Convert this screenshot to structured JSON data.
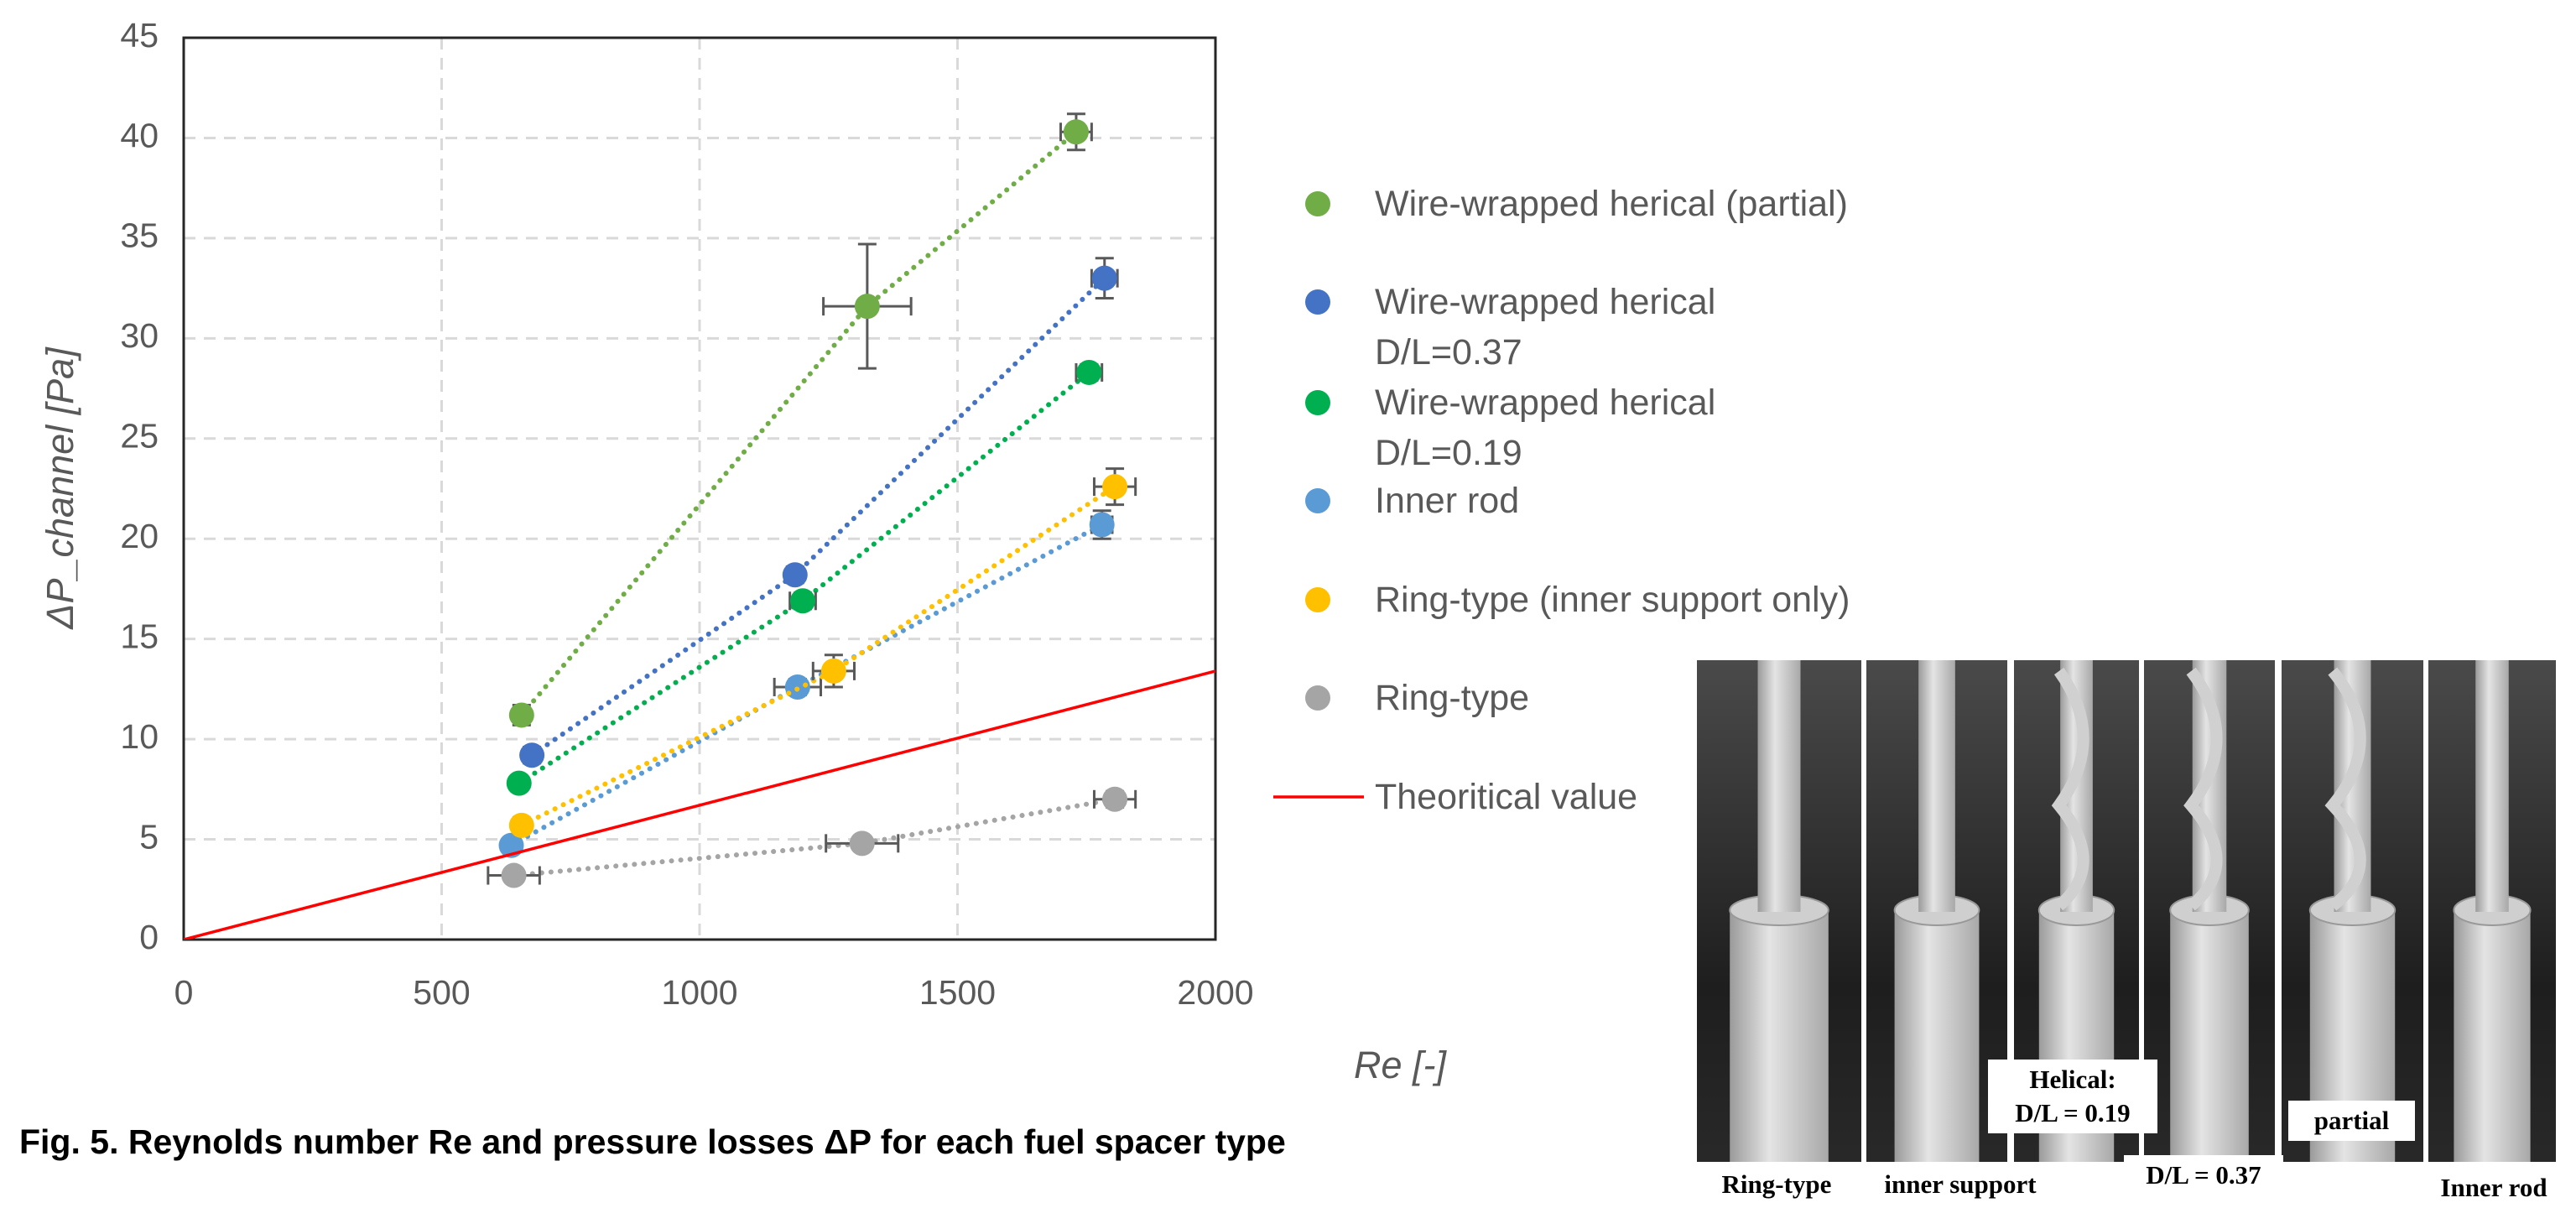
{
  "chart_data": {
    "type": "scatter",
    "caption": "Fig. 5. Reynolds number Re and pressure losses ΔP for each fuel spacer type",
    "xlabel": "Re [-]",
    "ylabel": "ΔP_channel [Pa]",
    "xlim": [
      0,
      2000
    ],
    "xticks": [
      0,
      500,
      1000,
      1500,
      2000
    ],
    "ylim": [
      0,
      45
    ],
    "yticks": [
      0,
      5,
      10,
      15,
      20,
      25,
      30,
      35,
      40,
      45
    ],
    "grid": true,
    "series": [
      {
        "name": "Wire-wrapped herical (partial)",
        "color": "#70ad47",
        "style": "marker",
        "x": [
          655,
          1325,
          1730
        ],
        "values": [
          11.2,
          31.6,
          40.3
        ],
        "xerr": [
          10,
          85,
          30
        ],
        "yerr": [
          0.5,
          3.1,
          0.9
        ]
      },
      {
        "name": "Wire-wrapped herical\nD/L=0.37",
        "color": "#4472c4",
        "style": "marker",
        "x": [
          675,
          1185,
          1785
        ],
        "values": [
          9.2,
          18.2,
          33.0
        ],
        "xerr": [
          15,
          15,
          25
        ],
        "yerr": [
          0.4,
          0.4,
          1.0
        ]
      },
      {
        "name": "Wire-wrapped herical\nD/L=0.19",
        "color": "#00b050",
        "style": "marker",
        "x": [
          650,
          1200,
          1755
        ],
        "values": [
          7.8,
          16.9,
          28.3
        ],
        "xerr": [
          10,
          25,
          25
        ],
        "yerr": [
          0.3,
          0.4,
          0.4
        ]
      },
      {
        "name": "Inner rod",
        "color": "#5b9bd5",
        "style": "marker",
        "x": [
          635,
          1190,
          1780
        ],
        "values": [
          4.7,
          12.6,
          20.7
        ],
        "xerr": [
          0,
          45,
          20
        ],
        "yerr": [
          0,
          0.4,
          0.7
        ]
      },
      {
        "name": "Ring-type (inner support only)",
        "color": "#ffc000",
        "style": "marker",
        "x": [
          655,
          1260,
          1805
        ],
        "values": [
          5.7,
          13.4,
          22.6
        ],
        "xerr": [
          15,
          40,
          40
        ],
        "yerr": [
          0.3,
          0.8,
          0.9
        ]
      },
      {
        "name": "Ring-type",
        "color": "#a5a5a5",
        "style": "marker",
        "x": [
          640,
          1315,
          1805
        ],
        "values": [
          3.2,
          4.8,
          7.0
        ],
        "xerr": [
          50,
          70,
          40
        ],
        "yerr": [
          0,
          0,
          0.4
        ]
      },
      {
        "name": "Theoritical value",
        "color": "#ff0000",
        "style": "line",
        "x": [
          0,
          2000
        ],
        "values": [
          0,
          13.4
        ]
      }
    ]
  },
  "photo": {
    "labels": [
      "Ring-type",
      "inner support",
      "Helical:\nD/L = 0.19",
      "D/L = 0.37",
      "partial",
      "Inner rod"
    ]
  }
}
